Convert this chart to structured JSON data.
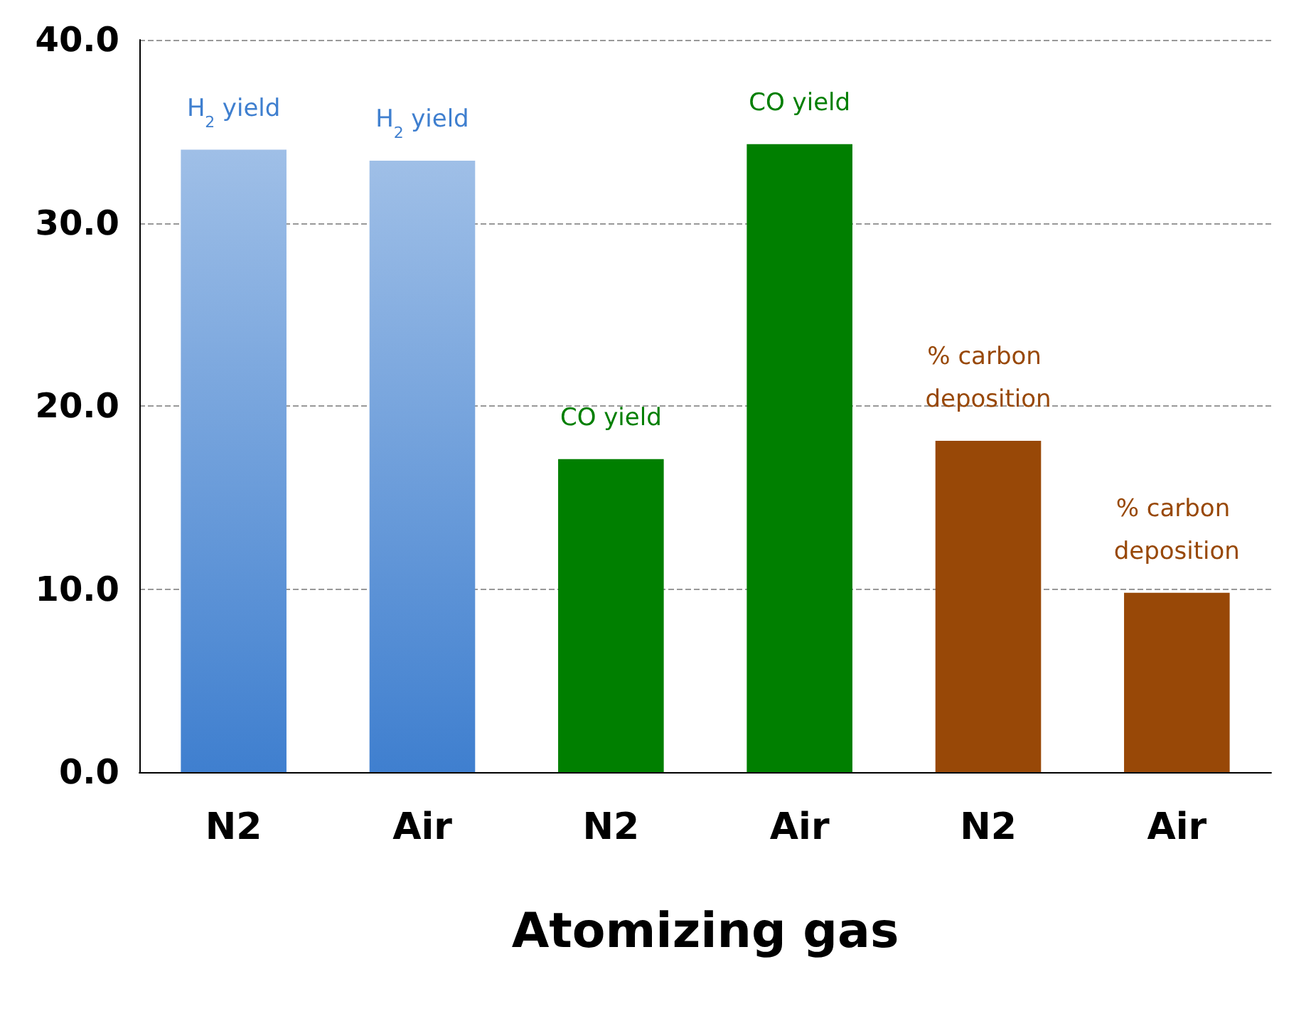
{
  "chart_data": {
    "type": "bar",
    "xlabel": "Atomizing gas",
    "categories": [
      "N2",
      "Air",
      "N2",
      "Air",
      "N2",
      "Air"
    ],
    "stacked": true,
    "series": [
      {
        "name": "H$_{2}$ yield",
        "color": "#3f7fcf",
        "values": [
          34.0,
          33.4,
          null,
          null,
          null,
          null
        ]
      },
      {
        "name": "CO yield",
        "color": "#007f00",
        "values": [
          null,
          null,
          17.1,
          34.3,
          null,
          null
        ]
      },
      {
        "name": "% carbon deposition",
        "color": "#984807",
        "values": [
          null,
          null,
          null,
          null,
          18.1,
          9.8
        ]
      }
    ],
    "ylim": [
      0,
      40
    ],
    "yticks": [
      {
        "value": 0,
        "label": "0.0"
      },
      {
        "value": 10,
        "label": "10.0"
      },
      {
        "value": 20,
        "label": "20.0"
      },
      {
        "value": 30,
        "label": "30.0"
      },
      {
        "value": 40,
        "label": "40.0"
      }
    ],
    "grid": "y",
    "legend": false
  }
}
